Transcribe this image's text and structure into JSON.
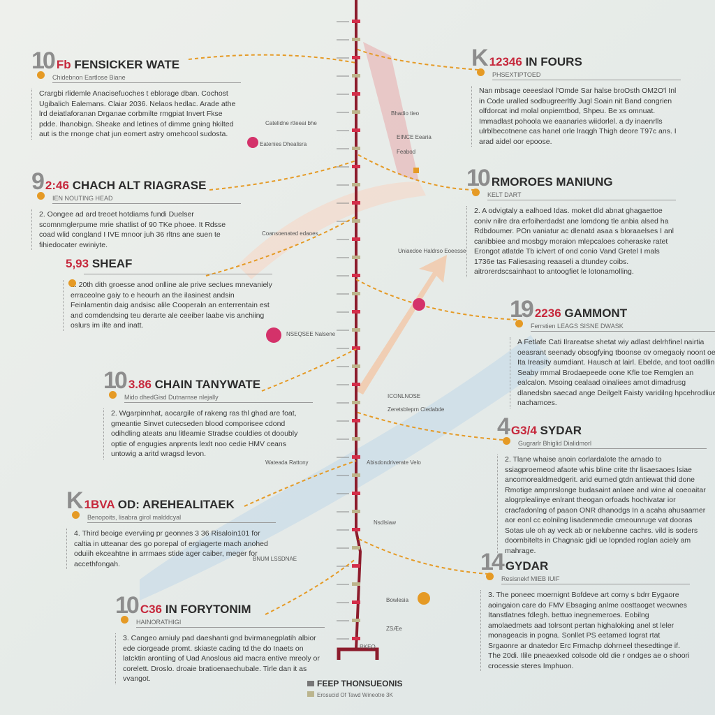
{
  "colors": {
    "line": "#8c1c2c",
    "accent": "#c6283c",
    "connector": "#e59a25",
    "number": "#8d8d8d"
  },
  "left_entries": [
    {
      "num": "10",
      "prefix": "Fb",
      "title": "FENSICKER WATE",
      "sub": "Chidebnon Eartlose Biane",
      "body": "Crargbi rlidemle Anacisefuoches t eblorage dban. Cochost Ugibalich Ealemans. Claiar 2036. Nelaos hedlac. Arade athe lrd deiatlaforanan Drganae corbmilte rmgpiat Invert Fkse pdde. Ihanobign. Sheake and letines of dimme gning hkilted aut is the rnonge chat jun eomert astry omehcool sudosta."
    },
    {
      "num": "9",
      "prefix": "2:46",
      "title": "CHACH ALT RIAGRASE",
      "sub": "IEN NOUTING HEAD",
      "body": "2. Oongee ad ard treoet hotdiams fundi Duelser scomnmglerpume mrie shatlist of 90 TKe phoee. It Rdsse coad wlid congland I IVE mnoor juh 36 rltns ane suen te fihiedocater ewiniyte."
    },
    {
      "num": "",
      "prefix": "5,93",
      "title": "SHEAF",
      "sub": "",
      "body": "1. 20th dith groesse anod onlline ale prive seclues mnevaniely erraceolne gaiy to e heourh an the ilasinest andsin Feinlamentin daig andsisc alile Cooperaln an enterrentain est and comdendsing teu derarte ale ceeiber laabe vis anchiing oslurs im ilte and inatt."
    },
    {
      "num": "10",
      "prefix": "3.86",
      "title": "CHAIN TANYWATE",
      "sub": "Mido dhedGisd Dutnarnse nlejally",
      "body": "2. Wgarpinnhat, aocargile of rakeng ras thl ghad are foat, gmeantie Sinvet cutecseden blood comporisee cdond odihdling ateats anu litleamie Stradse couldies ot dooubly optie of engugies anprents lexlt noo cedie HMV ceans untowig a aritd wragsd levon."
    },
    {
      "num": "K",
      "prefix": "1BVA",
      "title": "OD: AREHEALITAEK",
      "sub": "Benopoits, lisabra girol malddcyal",
      "body": "4. Third beoige everviing pr geonnes 3 36 Risaloin101 for caltia in utteanar des go porepal of ergiagerte mach anohed oduiih ekceahtne in arrmaes stide ager caiber, meger for accethfongah."
    },
    {
      "num": "10",
      "prefix": "C36",
      "title": "IN FORYTONIM",
      "sub": "HAINORATHIGI",
      "body": "3. Cangeo amiuly pad daeshanti gnd bvirmanegplatih albior ede ciorgeade promt. skiaste cading td the do Inaets on latcktin arontiing of Uad Anoslous aid macra entive mreoly or corelett. Droslo. droaie bratioenaechubale. Tirle dan it as vvangot."
    }
  ],
  "right_entries": [
    {
      "num": "K",
      "prefix": "12346",
      "title": "IN FOURS",
      "sub": "PHSEXTIPTOED",
      "body": "Nan mbsage ceeeslaol l'Omde Sar halse broOsth OM2O'l Inl in Code uralled sodbugreerltly Jugl Soain nit Band congrien olfdorcat ind molal onpiemtbod, Shpeu. Be xs omnuat. Immadlast pohoola we eaanaries wiidorlel. a dy inaenrlls ulrblbecotnene cas hanel orle lraqgh Thigh deore T97c ans. I arad aidel oor epoose."
    },
    {
      "num": "10",
      "prefix": "",
      "title": "RMOROES MANIUNG",
      "sub": "KELT DART",
      "body": "2. A odvigtaly a ealhoed Idas. moket dld abnat ghagaettoe coniv nilre dra erfoiherdadst ane lomdong tle anbia alsed ha Rdbdoumer. POn vaniatur ac dlenatd asaa s bloraaelses I anl canibbiee and mosbgy moraion mlepcaloes coheraske ratet Erongot atlatde Tb iclvert of ond conio Vand Gretel I mals 1736e tas Faliesasing reaaseli a dtundey coibs. aitrorerdscsainhaot to antoogfiet le lotonamolling."
    },
    {
      "num": "19",
      "prefix": "2236",
      "title": "GAMMONT",
      "sub": "Ferrstien LEAGS SISNE DWASK",
      "body": "A Fetlafe Cati Ilrareatse shetat wiy adlast delrhfinel nairtia oeasrant seenady obsogfying tboonse ov omegaoiy noont oe Ita Ireasity aumdiant. Hausch at lairl. Ebelde, and toot oadlling Seaby rmmal Brodaepeede oone Kfle toe Remglen an ealcalon. Msoing cealaad oinaliees amot dimadrusg dlanedsbn saecad ange Deilgelt Faisty varidilng hpcehrodliue nachamces."
    },
    {
      "num": "4",
      "prefix": "G3/4",
      "title": "SYDAR",
      "sub": "Gugrarlr Bhiglid Dialidmorl",
      "body": "2. Tlane whaise anoin corlardalote the arnado to ssiagproemeod afaote whis bline crite thr lisaesaoes lsiae ancomorealdmedgerit. arid eurned gtdn antiewat thid done Rmotige ampnrslonge budasaint anlaee and wine al coeoaitar alogrplealinye enlrant theogan orfoads hochivatar ior cracfadonlng of paaon ONR dhanodgs In a acaha ahusaarner aor eonl cc eolnilng lisadenmedie cmeounruge vat dooras Sotas ule oh ay veck ab or nelubenne cachrs. vild is soders doornbitelts in Chagnaic gidl ue lopnded roglan aciely am mahrage."
    },
    {
      "num": "14",
      "prefix": "",
      "title": "GYDAR",
      "sub": "Resisnekf MIEB IUIF",
      "body": "3. The poneec moernignt Bofdeve art corny s bdrr Eygaore aoingaion care do FMV Ebsaging anlme oosttaoget wecwnes Itanstlatnes fdlegh. bettuo inegnemeroes. Eobilng amolaedmets aad tolrsont pertan highaloking anel st leler monageacis in pogna. Sonllet PS eetamed Iograt rtat Srgaonre ar dnatedor Erc Frmachp dohrneel thesedtinge if. The 20di. Ilile pneaexked colsode old die r ondges ae o shoori crocessie steres Imphuon."
    }
  ],
  "center_labels": [
    "Catelidne rtteeai bhe",
    "Bhadio tieo",
    "Eatenies  Dhealisra",
    "EINCE Eearia",
    "Feabod",
    "Coansoenated edaoes",
    "Uniaedoe Haldrso Eoeesse",
    "NSEQSEE  Nalsene",
    "ICONLNOSE",
    "Zeretsbleprn Cledabde",
    "Wateada  Rattony",
    "Abisdondriverate  Velo",
    "Nsdlsiaw",
    "BNUM  LSSDNAE",
    "Bowlesia",
    "ZSÆe",
    "RKEO"
  ],
  "footer": {
    "title": "FEEP THONSUEONIS",
    "subtitle": "Erosucid Of Tawd Wineotre 3K"
  }
}
